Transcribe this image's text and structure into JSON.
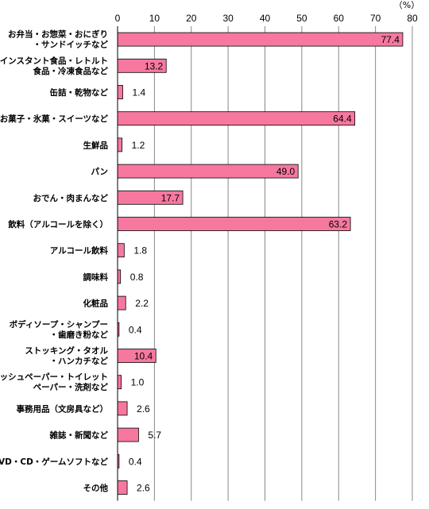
{
  "chart_data": {
    "type": "bar",
    "orientation": "horizontal",
    "unit": "（%）",
    "xlim": [
      0,
      80
    ],
    "ticks": [
      "0",
      "10",
      "20",
      "30",
      "40",
      "50",
      "60",
      "70",
      "80"
    ],
    "tick_values": [
      0,
      10,
      20,
      30,
      40,
      50,
      60,
      70,
      80
    ],
    "grid": true,
    "bar_color": "#f7789f",
    "categories": [
      [
        "お弁当・お惣菜・おにぎり",
        "・サンドイッチなど"
      ],
      [
        "インスタント食品・レトルト",
        "食品・冷凍食品など"
      ],
      [
        "缶詰・乾物など"
      ],
      [
        "お菓子・氷菓・スイーツなど"
      ],
      [
        "生鮮品"
      ],
      [
        "パン"
      ],
      [
        "おでん・肉まんなど"
      ],
      [
        "飲料（アルコールを除く）"
      ],
      [
        "アルコール飲料"
      ],
      [
        "調味料"
      ],
      [
        "化粧品"
      ],
      [
        "ボディソープ・シャンプー",
        "・歯磨き粉など"
      ],
      [
        "ストッキング・タオル",
        "・ハンカチなど"
      ],
      [
        "ティッシュペーパー・トイレット",
        "ペーパー・洗剤など"
      ],
      [
        "事務用品（文房具など）"
      ],
      [
        "雑誌・新聞など"
      ],
      [
        "DVD・CD・ゲームソフトなど"
      ],
      [
        "その他"
      ]
    ],
    "values": [
      77.4,
      13.2,
      1.4,
      64.4,
      1.2,
      49.0,
      17.7,
      63.2,
      1.8,
      0.8,
      2.2,
      0.4,
      10.4,
      1.0,
      2.6,
      5.7,
      0.4,
      2.6
    ],
    "value_labels": [
      "77.4",
      "13.2",
      "1.4",
      "64.4",
      "1.2",
      "49.0",
      "17.7",
      "63.2",
      "1.8",
      "0.8",
      "2.2",
      "0.4",
      "10.4",
      "1.0",
      "2.6",
      "5.7",
      "0.4",
      "2.6"
    ]
  }
}
